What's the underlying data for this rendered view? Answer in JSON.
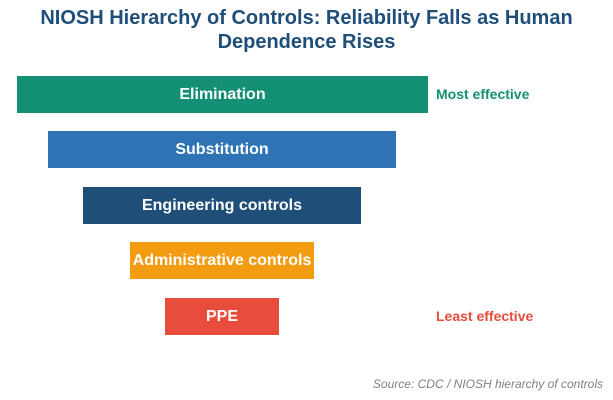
{
  "title_line1": "NIOSH Hierarchy of Controls: Reliability Falls as Human",
  "title_line2": "Dependence Rises",
  "controls": [
    {
      "label": "Elimination",
      "color": "#138f74"
    },
    {
      "label": "Substitution",
      "color": "#2e74b5"
    },
    {
      "label": "Engineering controls",
      "color": "#1f4e79"
    },
    {
      "label": "Administrative controls",
      "color": "#f39c12"
    },
    {
      "label": "PPE",
      "color": "#e74c3c"
    }
  ],
  "most_effective": {
    "text": "Most effective",
    "color": "#138f74"
  },
  "least_effective": {
    "text": "Least effective",
    "color": "#e74c3c"
  },
  "source": "Source: CDC / NIOSH hierarchy of controls"
}
